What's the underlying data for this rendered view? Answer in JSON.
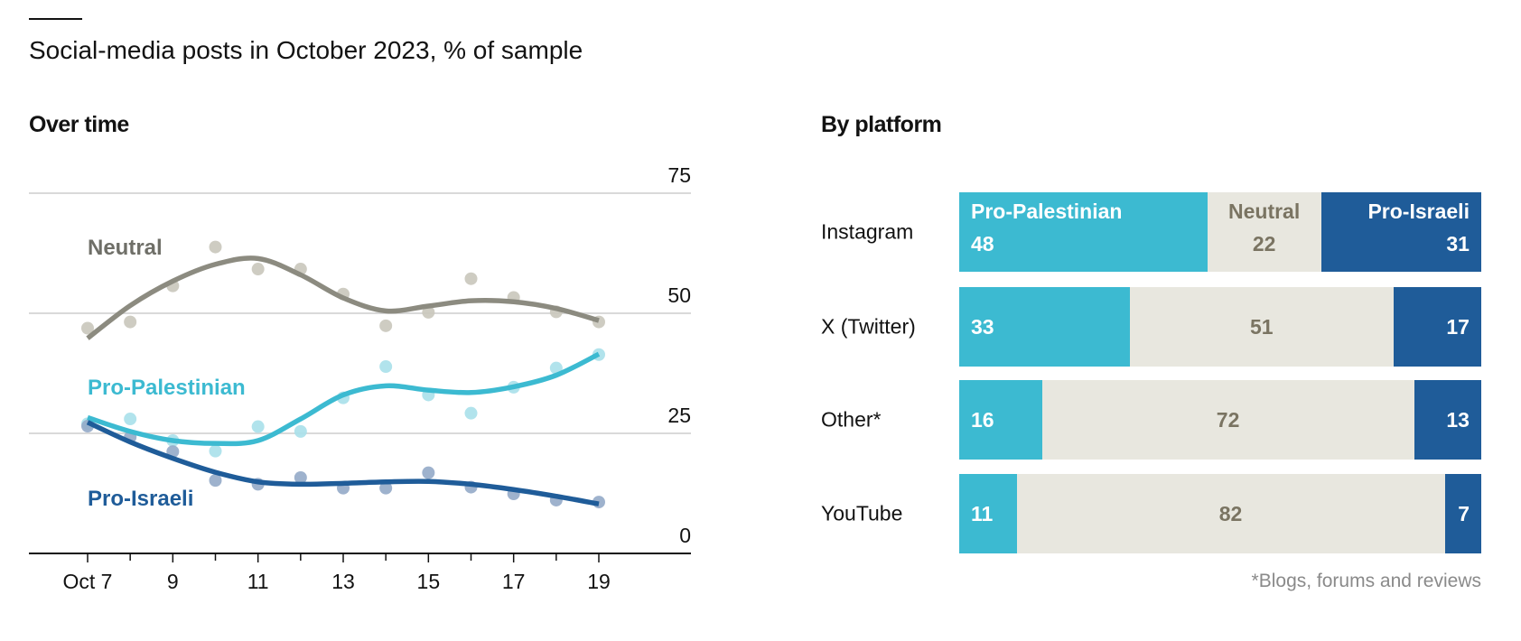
{
  "title": "Social-media posts in October 2023, % of sample",
  "colors": {
    "pro_palestinian": "#3cbad1",
    "neutral": "#e8e7df",
    "pro_israeli": "#1f5c99",
    "neutral_text": "#7a7462"
  },
  "chart_data": [
    {
      "type": "line",
      "title": "Over time",
      "x": [
        7,
        8,
        9,
        10,
        11,
        12,
        13,
        14,
        15,
        16,
        17,
        18,
        19
      ],
      "x_tick_labels": [
        {
          "x": 7,
          "label": "Oct 7"
        },
        {
          "x": 9,
          "label": "9"
        },
        {
          "x": 11,
          "label": "11"
        },
        {
          "x": 13,
          "label": "13"
        },
        {
          "x": 15,
          "label": "15"
        },
        {
          "x": 17,
          "label": "17"
        },
        {
          "x": 19,
          "label": "19"
        }
      ],
      "ylim": [
        0,
        75
      ],
      "y_ticks": [
        "0",
        "25",
        "50",
        "75"
      ],
      "grid": true,
      "series": [
        {
          "name": "Neutral",
          "line_color": "#8c8b80",
          "dot_color": "#c9c7bb",
          "points": [
            46.9,
            48.2,
            55.7,
            63.8,
            59.2,
            59.2,
            54,
            47.4,
            50.2,
            57.2,
            53.3,
            50.3,
            48.2
          ],
          "trend": [
            44.8,
            51.6,
            56.7,
            60.2,
            61.4,
            58,
            53.2,
            50.5,
            51.5,
            52.6,
            52.4,
            51,
            48.5
          ]
        },
        {
          "name": "Pro-Palestinian",
          "line_color": "#3cbad1",
          "dot_color": "#a9e0ea",
          "points": [
            27,
            28,
            23.5,
            21.3,
            26.4,
            25.4,
            32.4,
            38.9,
            33,
            29.2,
            34.6,
            38.6,
            41.4
          ],
          "trend": [
            28.3,
            25.4,
            23.5,
            22.9,
            23.5,
            28,
            33,
            34.9,
            34,
            33.5,
            34.7,
            37.1,
            41.5
          ]
        },
        {
          "name": "Pro-Israeli",
          "line_color": "#1f5c99",
          "dot_color": "#93aac8",
          "points": [
            26.5,
            24.2,
            21.2,
            15.2,
            14.4,
            15.8,
            13.6,
            13.6,
            16.8,
            13.8,
            12.4,
            11.1,
            10.7
          ],
          "trend": [
            27.3,
            23.2,
            19.8,
            16.9,
            14.9,
            14.4,
            14.6,
            14.9,
            15,
            14.4,
            13.3,
            11.9,
            10.3
          ]
        }
      ]
    },
    {
      "type": "bar",
      "stacked": true,
      "title": "By platform",
      "series_names": [
        "Pro-Palestinian",
        "Neutral",
        "Pro-Israeli"
      ],
      "categories": [
        "Instagram",
        "X (Twitter)",
        "Other*",
        "YouTube"
      ],
      "rows": [
        {
          "label": "Instagram",
          "values": [
            48,
            22,
            31
          ]
        },
        {
          "label": "X (Twitter)",
          "values": [
            33,
            51,
            17
          ]
        },
        {
          "label": "Other*",
          "values": [
            16,
            72,
            13
          ]
        },
        {
          "label": "YouTube",
          "values": [
            11,
            82,
            7
          ]
        }
      ],
      "footnote": "*Blogs, forums and reviews"
    }
  ]
}
